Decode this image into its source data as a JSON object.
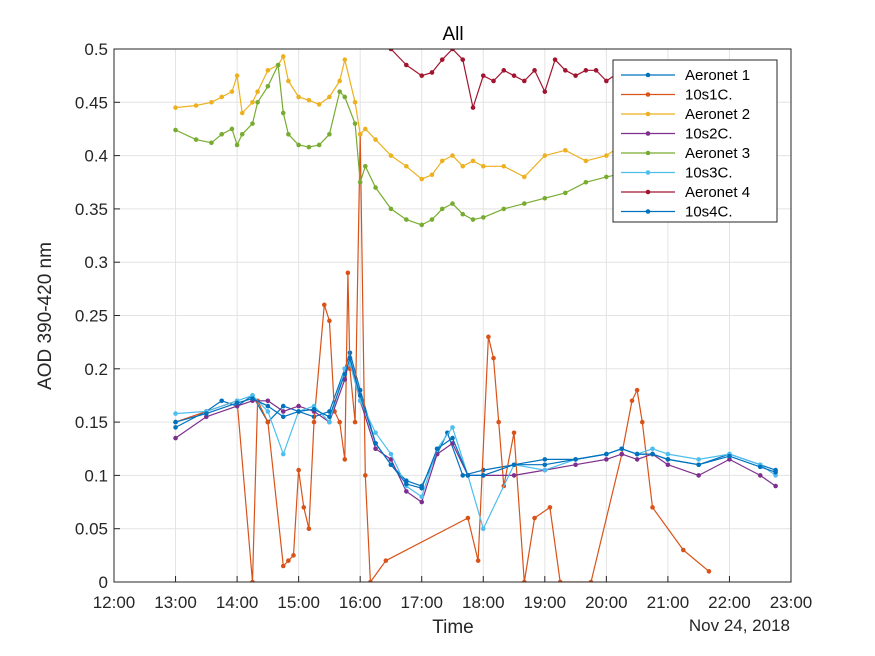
{
  "chart_data": {
    "type": "line",
    "title": "All",
    "xlabel": "Time",
    "ylabel": "AOD 390-420 nm",
    "date_label": "Nov 24, 2018",
    "xlim": [
      "12:00",
      "23:00"
    ],
    "ylim": [
      0,
      0.5
    ],
    "x_ticks": [
      "12:00",
      "13:00",
      "14:00",
      "15:00",
      "16:00",
      "17:00",
      "18:00",
      "19:00",
      "20:00",
      "21:00",
      "22:00",
      "23:00"
    ],
    "y_ticks": [
      "0",
      "0.05",
      "0.1",
      "0.15",
      "0.2",
      "0.25",
      "0.3",
      "0.35",
      "0.4",
      "0.45",
      "0.5"
    ],
    "grid": true,
    "legend_position": "top-right",
    "series": [
      {
        "name": "Aeronet 1",
        "color": "#0072BD",
        "x": [
          "13:00",
          "13:30",
          "13:45",
          "14:00",
          "14:15",
          "14:30",
          "14:45",
          "15:00",
          "15:15",
          "15:30",
          "15:45",
          "15:50",
          "16:00",
          "16:15",
          "16:30",
          "16:45",
          "17:00",
          "17:15",
          "17:25",
          "17:40",
          "18:00",
          "18:30",
          "19:00",
          "19:30",
          "20:00",
          "20:15",
          "20:30",
          "20:45",
          "21:00",
          "21:30",
          "22:00",
          "22:30",
          "22:45"
        ],
        "y": [
          0.145,
          0.16,
          0.17,
          0.165,
          0.175,
          0.15,
          0.165,
          0.16,
          0.155,
          0.16,
          0.2,
          0.215,
          0.18,
          0.13,
          0.11,
          0.095,
          0.09,
          0.12,
          0.14,
          0.1,
          0.105,
          0.11,
          0.115,
          0.115,
          0.12,
          0.125,
          0.12,
          0.12,
          0.115,
          0.11,
          0.12,
          0.11,
          0.105
        ]
      },
      {
        "name": "10s1C.",
        "color": "#D95319",
        "x": [
          "13:00",
          "13:30",
          "14:00",
          "14:15",
          "14:20",
          "14:30",
          "14:45",
          "14:50",
          "14:55",
          "15:00",
          "15:05",
          "15:10",
          "15:15",
          "15:25",
          "15:30",
          "15:35",
          "15:40",
          "15:45",
          "15:48",
          "15:50",
          "15:55",
          "16:00",
          "16:05",
          "16:10",
          "16:25",
          "17:45",
          "17:55",
          "18:05",
          "18:10",
          "18:15",
          "18:20",
          "18:30",
          "18:40",
          "18:50",
          "19:05",
          "19:15",
          "19:45",
          "20:15",
          "20:25",
          "20:30",
          "20:35",
          "20:45",
          "21:15",
          "21:40"
        ],
        "y": [
          0.15,
          0.16,
          0.17,
          0.0,
          0.17,
          0.15,
          0.015,
          0.02,
          0.025,
          0.105,
          0.07,
          0.05,
          0.15,
          0.26,
          0.245,
          0.16,
          0.15,
          0.115,
          0.29,
          0.2,
          0.15,
          0.42,
          0.1,
          0.0,
          0.02,
          0.06,
          0.02,
          0.23,
          0.21,
          0.15,
          0.09,
          0.14,
          0.0,
          0.06,
          0.07,
          0.0,
          0.0,
          0.12,
          0.17,
          0.18,
          0.15,
          0.07,
          0.03,
          0.01
        ]
      },
      {
        "name": "Aeronet 2",
        "color": "#EDB120",
        "x": [
          "13:00",
          "13:20",
          "13:35",
          "13:45",
          "13:55",
          "14:00",
          "14:05",
          "14:15",
          "14:20",
          "14:30",
          "14:40",
          "14:45",
          "14:50",
          "15:00",
          "15:10",
          "15:20",
          "15:30",
          "15:40",
          "15:45",
          "15:55",
          "16:00",
          "16:05",
          "16:15",
          "16:30",
          "16:45",
          "17:00",
          "17:10",
          "17:20",
          "17:30",
          "17:40",
          "17:50",
          "18:00",
          "18:20",
          "18:40",
          "19:00",
          "19:20",
          "19:40",
          "20:00",
          "20:15",
          "20:30",
          "20:45",
          "21:00",
          "21:30",
          "22:00",
          "22:30"
        ],
        "y": [
          0.445,
          0.447,
          0.45,
          0.455,
          0.46,
          0.475,
          0.44,
          0.45,
          0.46,
          0.48,
          0.485,
          0.493,
          0.47,
          0.455,
          0.452,
          0.448,
          0.455,
          0.47,
          0.49,
          0.45,
          0.42,
          0.425,
          0.415,
          0.4,
          0.39,
          0.378,
          0.382,
          0.395,
          0.4,
          0.39,
          0.395,
          0.39,
          0.39,
          0.38,
          0.4,
          0.405,
          0.395,
          0.4,
          0.41,
          0.405,
          0.4,
          0.41,
          0.41,
          0.41,
          0.41
        ]
      },
      {
        "name": "10s2C.",
        "color": "#7E2F8E",
        "x": [
          "13:00",
          "13:30",
          "14:00",
          "14:15",
          "14:30",
          "14:45",
          "15:00",
          "15:15",
          "15:30",
          "15:45",
          "15:50",
          "16:00",
          "16:15",
          "16:30",
          "16:45",
          "17:00",
          "17:15",
          "17:30",
          "17:45",
          "18:00",
          "18:30",
          "19:00",
          "19:30",
          "20:00",
          "20:15",
          "20:30",
          "20:45",
          "21:00",
          "21:30",
          "22:00",
          "22:30",
          "22:45"
        ],
        "y": [
          0.135,
          0.155,
          0.165,
          0.17,
          0.17,
          0.16,
          0.165,
          0.16,
          0.15,
          0.19,
          0.21,
          0.17,
          0.125,
          0.115,
          0.085,
          0.075,
          0.12,
          0.13,
          0.1,
          0.1,
          0.1,
          0.105,
          0.11,
          0.115,
          0.12,
          0.115,
          0.12,
          0.11,
          0.1,
          0.115,
          0.1,
          0.09
        ]
      },
      {
        "name": "Aeronet 3",
        "color": "#77AC30",
        "x": [
          "13:00",
          "13:20",
          "13:35",
          "13:45",
          "13:55",
          "14:00",
          "14:05",
          "14:15",
          "14:20",
          "14:30",
          "14:40",
          "14:45",
          "14:50",
          "15:00",
          "15:10",
          "15:20",
          "15:30",
          "15:40",
          "15:45",
          "15:55",
          "16:00",
          "16:05",
          "16:15",
          "16:30",
          "16:45",
          "17:00",
          "17:10",
          "17:20",
          "17:30",
          "17:40",
          "17:50",
          "18:00",
          "18:20",
          "18:40",
          "19:00",
          "19:20",
          "19:40",
          "20:00",
          "20:15",
          "20:30",
          "20:45",
          "21:00",
          "21:30",
          "22:00",
          "22:30"
        ],
        "y": [
          0.424,
          0.415,
          0.412,
          0.42,
          0.425,
          0.41,
          0.42,
          0.43,
          0.45,
          0.465,
          0.485,
          0.44,
          0.42,
          0.41,
          0.408,
          0.41,
          0.42,
          0.46,
          0.455,
          0.43,
          0.375,
          0.39,
          0.37,
          0.35,
          0.34,
          0.335,
          0.34,
          0.35,
          0.355,
          0.345,
          0.34,
          0.342,
          0.35,
          0.355,
          0.36,
          0.365,
          0.375,
          0.38,
          0.383,
          0.38,
          0.375,
          0.38,
          0.38,
          0.38,
          0.385
        ]
      },
      {
        "name": "10s3C.",
        "color": "#4DBEEE",
        "x": [
          "13:00",
          "13:30",
          "14:00",
          "14:15",
          "14:30",
          "14:45",
          "15:00",
          "15:15",
          "15:30",
          "15:45",
          "15:50",
          "16:00",
          "16:15",
          "16:30",
          "16:45",
          "17:00",
          "17:15",
          "17:30",
          "17:45",
          "18:00",
          "18:30",
          "19:00",
          "19:30",
          "20:00",
          "20:15",
          "20:30",
          "20:45",
          "21:00",
          "21:30",
          "22:00",
          "22:30",
          "22:45"
        ],
        "y": [
          0.158,
          0.16,
          0.17,
          0.175,
          0.16,
          0.12,
          0.16,
          0.165,
          0.15,
          0.2,
          0.205,
          0.17,
          0.14,
          0.12,
          0.09,
          0.08,
          0.125,
          0.145,
          0.1,
          0.05,
          0.11,
          0.105,
          0.115,
          0.12,
          0.125,
          0.12,
          0.125,
          0.12,
          0.115,
          0.12,
          0.11,
          0.1
        ]
      },
      {
        "name": "Aeronet 4",
        "color": "#A2142F",
        "x": [
          "16:30",
          "16:45",
          "17:00",
          "17:10",
          "17:20",
          "17:30",
          "17:40",
          "17:50",
          "18:00",
          "18:10",
          "18:20",
          "18:30",
          "18:40",
          "18:50",
          "19:00",
          "19:10",
          "19:20",
          "19:30",
          "19:40",
          "19:50",
          "20:00",
          "20:15",
          "20:30",
          "20:45",
          "21:00",
          "21:30",
          "22:00"
        ],
        "y": [
          0.5,
          0.485,
          0.475,
          0.478,
          0.49,
          0.5,
          0.49,
          0.445,
          0.475,
          0.47,
          0.48,
          0.475,
          0.47,
          0.48,
          0.46,
          0.49,
          0.48,
          0.475,
          0.48,
          0.48,
          0.47,
          0.48,
          0.475,
          0.48,
          0.48,
          0.48,
          0.48
        ]
      },
      {
        "name": "10s4C.",
        "color": "#0072BD",
        "x": [
          "13:00",
          "13:30",
          "14:00",
          "14:15",
          "14:30",
          "14:45",
          "15:00",
          "15:15",
          "15:30",
          "15:45",
          "15:50",
          "16:00",
          "16:15",
          "16:30",
          "16:45",
          "17:00",
          "17:15",
          "17:30",
          "17:45",
          "18:00",
          "18:30",
          "19:00",
          "19:30",
          "20:00",
          "20:15",
          "20:30",
          "20:45",
          "21:00",
          "21:30",
          "22:00",
          "22:30",
          "22:45"
        ],
        "y": [
          0.15,
          0.158,
          0.168,
          0.172,
          0.165,
          0.155,
          0.16,
          0.162,
          0.155,
          0.195,
          0.21,
          0.175,
          0.13,
          0.11,
          0.092,
          0.088,
          0.125,
          0.135,
          0.1,
          0.1,
          0.11,
          0.11,
          0.115,
          0.12,
          0.125,
          0.12,
          0.12,
          0.115,
          0.11,
          0.118,
          0.108,
          0.103
        ]
      }
    ]
  }
}
